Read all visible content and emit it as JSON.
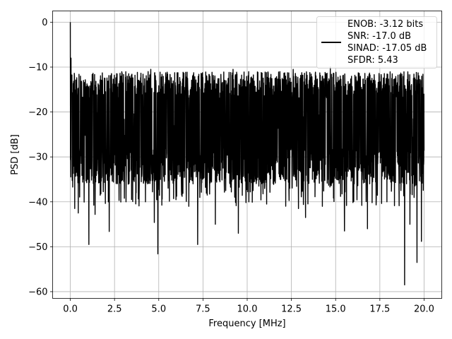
{
  "chart_data": {
    "type": "line",
    "title": "",
    "xlabel": "Frequency [MHz]",
    "ylabel": "PSD [dB]",
    "xlim": [
      -1.0,
      21.0
    ],
    "ylim": [
      -61.5,
      2.5
    ],
    "xticks": [
      0.0,
      2.5,
      5.0,
      7.5,
      10.0,
      12.5,
      15.0,
      17.5,
      20.0
    ],
    "xtick_labels": [
      "0.0",
      "2.5",
      "5.0",
      "7.5",
      "10.0",
      "12.5",
      "15.0",
      "17.5",
      "20.0"
    ],
    "yticks": [
      0,
      -10,
      -20,
      -30,
      -40,
      -50,
      -60
    ],
    "ytick_labels": [
      "0",
      "−10",
      "−20",
      "−30",
      "−40",
      "−50",
      "−60"
    ],
    "grid": true,
    "legend": {
      "placement": "upper-right",
      "entries": [
        "ENOB: -3.12 bits",
        "SNR: -17.0 dB",
        "SINAD: -17.05 dB",
        "SFDR: 5.43"
      ]
    },
    "series": [
      {
        "color": "#000000",
        "x_range": [
          0.0,
          20.0
        ],
        "baseline_mean": -23,
        "upper_envelope": -13,
        "lower_envelope": -33,
        "peaks": [
          {
            "x": 0.0,
            "y": 0.0
          },
          {
            "x": 0.04,
            "y": -8.0
          },
          {
            "x": 0.08,
            "y": -13.0
          }
        ],
        "dips": [
          {
            "x": 0.25,
            "y": -41.5
          },
          {
            "x": 0.45,
            "y": -42.5
          },
          {
            "x": 1.05,
            "y": -49.5
          },
          {
            "x": 1.4,
            "y": -42.8
          },
          {
            "x": 2.15,
            "y": -40.0
          },
          {
            "x": 2.2,
            "y": -46.6
          },
          {
            "x": 3.15,
            "y": -40.0
          },
          {
            "x": 4.25,
            "y": -40.0
          },
          {
            "x": 4.75,
            "y": -44.6
          },
          {
            "x": 4.95,
            "y": -51.6
          },
          {
            "x": 6.7,
            "y": -41.0
          },
          {
            "x": 7.2,
            "y": -49.5
          },
          {
            "x": 8.2,
            "y": -45.0
          },
          {
            "x": 9.5,
            "y": -47.0
          },
          {
            "x": 11.1,
            "y": -40.5
          },
          {
            "x": 12.4,
            "y": -37.0
          },
          {
            "x": 12.9,
            "y": -41.5
          },
          {
            "x": 13.3,
            "y": -43.5
          },
          {
            "x": 14.25,
            "y": -41.0
          },
          {
            "x": 15.5,
            "y": -46.5
          },
          {
            "x": 16.05,
            "y": -36.0
          },
          {
            "x": 16.8,
            "y": -46.0
          },
          {
            "x": 17.9,
            "y": -40.0
          },
          {
            "x": 18.9,
            "y": -58.5
          },
          {
            "x": 19.2,
            "y": -45.0
          },
          {
            "x": 19.6,
            "y": -53.5
          },
          {
            "x": 19.85,
            "y": -48.8
          }
        ],
        "high_spikes": [
          {
            "x": 4.4,
            "y": -11.0
          },
          {
            "x": 4.55,
            "y": -10.5
          },
          {
            "x": 9.2,
            "y": -10.5
          },
          {
            "x": 12.6,
            "y": -10.5
          },
          {
            "x": 14.7,
            "y": -10.0
          },
          {
            "x": 18.2,
            "y": -11.5
          },
          {
            "x": 19.4,
            "y": -12.5
          }
        ]
      }
    ]
  }
}
